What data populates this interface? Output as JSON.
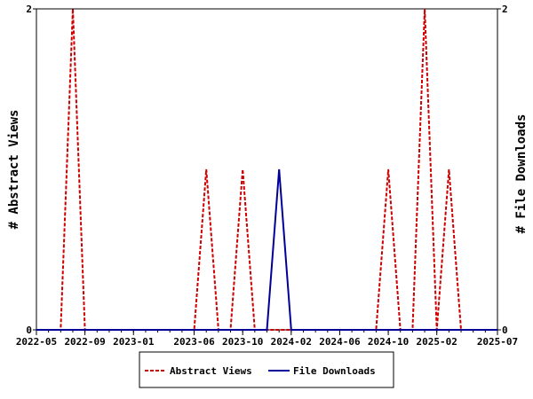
{
  "chart_data": {
    "type": "line",
    "title": "",
    "ylabel": "# Abstract Views",
    "ylabel_right": "# File Downloads",
    "x": [
      "2022-05",
      "2022-06",
      "2022-07",
      "2022-08",
      "2022-09",
      "2022-10",
      "2022-11",
      "2022-12",
      "2023-01",
      "2023-02",
      "2023-03",
      "2023-04",
      "2023-05",
      "2023-06",
      "2023-07",
      "2023-08",
      "2023-09",
      "2023-10",
      "2023-11",
      "2023-12",
      "2024-01",
      "2024-02",
      "2024-03",
      "2024-04",
      "2024-05",
      "2024-06",
      "2024-07",
      "2024-08",
      "2024-09",
      "2024-10",
      "2024-11",
      "2024-12",
      "2025-01",
      "2025-02",
      "2025-03",
      "2025-04",
      "2025-05",
      "2025-06",
      "2025-07"
    ],
    "xticks": [
      "2022-05",
      "2022-09",
      "2023-01",
      "2023-06",
      "2023-10",
      "2024-02",
      "2024-06",
      "2024-10",
      "2025-02",
      "2025-07"
    ],
    "xtick_index": [
      0,
      4,
      8,
      13,
      17,
      21,
      25,
      29,
      33,
      38
    ],
    "ylim": [
      0,
      2
    ],
    "yticks": [
      "0",
      "2"
    ],
    "ylim_right": [
      0,
      2
    ],
    "yticks_right": [
      "0",
      "2"
    ],
    "series": [
      {
        "name": "Abstract Views",
        "color": "#cc0000",
        "dashed": true,
        "axis": "left",
        "values": [
          0,
          0,
          0,
          2,
          0,
          0,
          0,
          0,
          0,
          0,
          0,
          0,
          0,
          0,
          1,
          0,
          0,
          1,
          0,
          0,
          0,
          0,
          0,
          0,
          0,
          0,
          0,
          0,
          0,
          1,
          0,
          0,
          2,
          0,
          1,
          0,
          0,
          0,
          0
        ]
      },
      {
        "name": "File Downloads",
        "color": "#000099",
        "dashed": false,
        "axis": "right",
        "values": [
          0,
          0,
          0,
          0,
          0,
          0,
          0,
          0,
          0,
          0,
          0,
          0,
          0,
          0,
          0,
          0,
          0,
          0,
          0,
          0,
          1,
          0,
          0,
          0,
          0,
          0,
          0,
          0,
          0,
          0,
          0,
          0,
          0,
          0,
          0,
          0,
          0,
          0,
          0
        ]
      }
    ],
    "legend": "bottom",
    "grid": false
  }
}
